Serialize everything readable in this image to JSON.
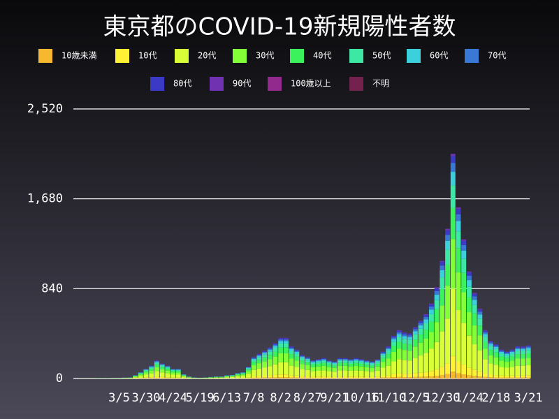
{
  "chart_data": {
    "type": "stacked_bar",
    "title": "東京都のCOVID-19新規陽性者数",
    "categories": [
      null,
      null,
      null,
      null,
      null,
      null,
      null,
      null,
      "3/5",
      null,
      null,
      null,
      null,
      "3/30",
      null,
      null,
      null,
      null,
      "4/24",
      null,
      null,
      null,
      null,
      "5/19",
      null,
      null,
      null,
      null,
      "6/13",
      null,
      null,
      null,
      null,
      "7/8",
      null,
      null,
      null,
      null,
      "8/2",
      null,
      null,
      null,
      null,
      "8/27",
      null,
      null,
      null,
      null,
      "9/21",
      null,
      null,
      null,
      null,
      "10/16",
      null,
      null,
      null,
      null,
      "11/10",
      null,
      null,
      null,
      null,
      "12/5",
      null,
      null,
      null,
      null,
      "12/30",
      null,
      null,
      null,
      null,
      "1/24",
      null,
      null,
      null,
      null,
      "2/18",
      null,
      null,
      null,
      null,
      null,
      "3/21"
    ],
    "ylim": [
      0,
      2520
    ],
    "yticks": [
      0,
      840,
      {
        "value": 1680,
        "label": "1,680"
      },
      {
        "value": 2520,
        "label": "2,520"
      }
    ],
    "grid": true,
    "series": [
      {
        "name": "10歳未満",
        "color": "#f5b82e",
        "values": [
          0,
          0,
          0,
          0,
          0,
          0,
          0,
          0,
          0,
          0,
          0,
          1,
          2,
          3,
          4,
          5,
          4,
          4,
          3,
          3,
          1,
          1,
          0,
          0,
          0,
          0,
          1,
          1,
          1,
          1,
          2,
          2,
          3,
          6,
          7,
          8,
          9,
          10,
          11,
          11,
          9,
          8,
          7,
          6,
          5,
          5,
          6,
          5,
          5,
          6,
          6,
          5,
          6,
          5,
          5,
          5,
          5,
          8,
          9,
          12,
          14,
          13,
          13,
          14,
          16,
          18,
          21,
          26,
          33,
          42,
          63,
          48,
          39,
          30,
          24,
          20,
          14,
          11,
          10,
          8,
          8,
          8,
          9,
          9,
          9
        ]
      },
      {
        "name": "10代",
        "color": "#fff234",
        "values": [
          0,
          0,
          0,
          0,
          0,
          0,
          0,
          0,
          0,
          1,
          1,
          2,
          4,
          6,
          8,
          12,
          10,
          8,
          6,
          6,
          3,
          1,
          1,
          1,
          1,
          1,
          1,
          1,
          2,
          2,
          4,
          4,
          8,
          14,
          16,
          18,
          20,
          23,
          27,
          27,
          21,
          19,
          15,
          14,
          12,
          13,
          13,
          12,
          11,
          13,
          13,
          13,
          13,
          13,
          12,
          11,
          13,
          18,
          21,
          28,
          32,
          30,
          29,
          34,
          38,
          42,
          49,
          60,
          77,
          98,
          147,
          112,
          91,
          70,
          56,
          46,
          32,
          25,
          22,
          19,
          18,
          19,
          21,
          21,
          22
        ]
      },
      {
        "name": "20代",
        "color": "#d9ff36",
        "values": [
          0,
          0,
          0,
          0,
          1,
          1,
          1,
          2,
          2,
          2,
          3,
          9,
          18,
          27,
          36,
          51,
          42,
          36,
          27,
          27,
          12,
          6,
          3,
          2,
          3,
          5,
          6,
          6,
          9,
          11,
          15,
          18,
          33,
          60,
          69,
          78,
          87,
          99,
          114,
          114,
          90,
          81,
          66,
          60,
          51,
          54,
          57,
          51,
          48,
          57,
          57,
          54,
          57,
          54,
          51,
          48,
          54,
          75,
          90,
          120,
          135,
          129,
          126,
          144,
          162,
          180,
          210,
          255,
          330,
          420,
          630,
          480,
          390,
          300,
          240,
          195,
          135,
          105,
          96,
          81,
          75,
          81,
          90,
          90,
          93
        ]
      },
      {
        "name": "30代",
        "color": "#82ff36",
        "values": [
          0,
          1,
          1,
          1,
          1,
          1,
          1,
          1,
          1,
          2,
          2,
          7,
          13,
          20,
          26,
          37,
          31,
          26,
          20,
          20,
          9,
          4,
          2,
          2,
          2,
          3,
          4,
          4,
          7,
          8,
          11,
          13,
          24,
          44,
          51,
          57,
          64,
          73,
          84,
          84,
          66,
          59,
          48,
          44,
          37,
          40,
          42,
          37,
          35,
          42,
          42,
          40,
          42,
          40,
          37,
          35,
          40,
          55,
          66,
          88,
          99,
          95,
          92,
          106,
          119,
          132,
          154,
          187,
          242,
          308,
          462,
          352,
          286,
          220,
          176,
          143,
          99,
          77,
          70,
          59,
          55,
          59,
          66,
          66,
          68
        ]
      },
      {
        "name": "40代",
        "color": "#3cf25c",
        "values": [
          0,
          0,
          0,
          0,
          0,
          0,
          0,
          1,
          1,
          1,
          1,
          4,
          8,
          13,
          17,
          24,
          20,
          17,
          13,
          13,
          6,
          3,
          1,
          1,
          1,
          2,
          3,
          3,
          4,
          5,
          7,
          8,
          15,
          28,
          32,
          36,
          41,
          46,
          53,
          53,
          42,
          38,
          31,
          28,
          24,
          25,
          27,
          24,
          22,
          27,
          27,
          25,
          27,
          25,
          24,
          22,
          25,
          35,
          42,
          56,
          63,
          60,
          59,
          67,
          76,
          84,
          98,
          119,
          154,
          196,
          294,
          224,
          182,
          140,
          112,
          91,
          63,
          49,
          45,
          38,
          35,
          38,
          42,
          42,
          43
        ]
      },
      {
        "name": "50代",
        "color": "#3ce8a4",
        "values": [
          0,
          0,
          0,
          0,
          1,
          1,
          1,
          1,
          1,
          1,
          1,
          3,
          6,
          9,
          12,
          17,
          14,
          12,
          9,
          9,
          4,
          2,
          1,
          1,
          1,
          1,
          2,
          2,
          3,
          3,
          5,
          6,
          11,
          20,
          23,
          26,
          29,
          33,
          38,
          38,
          30,
          27,
          22,
          20,
          17,
          18,
          19,
          17,
          16,
          19,
          19,
          18,
          19,
          18,
          17,
          16,
          18,
          25,
          30,
          40,
          45,
          43,
          42,
          48,
          54,
          60,
          70,
          85,
          110,
          140,
          210,
          160,
          130,
          100,
          80,
          65,
          45,
          35,
          32,
          27,
          25,
          27,
          30,
          30,
          31
        ]
      },
      {
        "name": "60代",
        "color": "#3ccfdc",
        "values": [
          0,
          0,
          0,
          0,
          0,
          0,
          0,
          0,
          1,
          1,
          1,
          2,
          4,
          5,
          7,
          10,
          8,
          7,
          5,
          5,
          2,
          1,
          1,
          0,
          1,
          1,
          1,
          1,
          2,
          2,
          3,
          4,
          7,
          12,
          14,
          16,
          17,
          20,
          23,
          23,
          18,
          16,
          13,
          12,
          10,
          11,
          11,
          10,
          10,
          11,
          11,
          11,
          11,
          11,
          10,
          10,
          11,
          15,
          18,
          24,
          27,
          26,
          25,
          29,
          32,
          36,
          42,
          51,
          66,
          84,
          126,
          96,
          78,
          60,
          48,
          39,
          27,
          21,
          19,
          16,
          15,
          16,
          18,
          18,
          19
        ]
      },
      {
        "name": "70代",
        "color": "#3a78d6",
        "values": [
          0,
          0,
          0,
          0,
          0,
          0,
          0,
          0,
          0,
          0,
          0,
          1,
          2,
          4,
          5,
          7,
          6,
          5,
          4,
          4,
          2,
          1,
          0,
          0,
          0,
          1,
          1,
          1,
          1,
          1,
          2,
          2,
          4,
          8,
          9,
          10,
          12,
          13,
          15,
          15,
          12,
          11,
          9,
          8,
          7,
          7,
          8,
          7,
          6,
          8,
          8,
          7,
          8,
          7,
          7,
          6,
          7,
          10,
          12,
          16,
          18,
          17,
          17,
          19,
          22,
          24,
          28,
          34,
          44,
          56,
          84,
          64,
          52,
          40,
          32,
          26,
          18,
          14,
          13,
          11,
          10,
          11,
          12,
          12,
          12
        ]
      },
      {
        "name": "80代",
        "color": "#3a3ac6",
        "values": [
          0,
          0,
          0,
          0,
          0,
          0,
          0,
          0,
          0,
          0,
          0,
          1,
          2,
          3,
          4,
          5,
          4,
          4,
          3,
          3,
          1,
          1,
          0,
          0,
          0,
          0,
          1,
          1,
          1,
          1,
          2,
          2,
          3,
          6,
          7,
          8,
          9,
          10,
          11,
          11,
          9,
          8,
          7,
          6,
          5,
          5,
          6,
          5,
          5,
          6,
          6,
          5,
          6,
          5,
          5,
          5,
          5,
          8,
          9,
          12,
          14,
          13,
          13,
          14,
          16,
          18,
          21,
          26,
          33,
          42,
          63,
          48,
          39,
          30,
          24,
          20,
          14,
          11,
          10,
          8,
          8,
          8,
          9,
          9,
          9
        ]
      },
      {
        "name": "90代",
        "color": "#7032b0",
        "values": [
          0,
          0,
          0,
          0,
          0,
          0,
          0,
          0,
          0,
          0,
          0,
          0,
          0,
          1,
          1,
          2,
          1,
          1,
          1,
          1,
          0,
          0,
          0,
          0,
          0,
          0,
          0,
          0,
          0,
          0,
          0,
          0,
          1,
          2,
          2,
          3,
          3,
          3,
          4,
          4,
          3,
          3,
          2,
          2,
          2,
          2,
          2,
          2,
          2,
          2,
          2,
          2,
          2,
          2,
          2,
          2,
          2,
          3,
          3,
          4,
          5,
          4,
          4,
          5,
          5,
          6,
          7,
          9,
          11,
          14,
          21,
          16,
          13,
          10,
          8,
          7,
          5,
          4,
          3,
          3,
          3,
          3,
          3,
          3,
          3
        ]
      },
      {
        "name": "100歳以上",
        "color": "#922a8e",
        "values": [
          0,
          0,
          0,
          0,
          0,
          0,
          0,
          0,
          0,
          0,
          0,
          0,
          0,
          0,
          0,
          0,
          0,
          0,
          0,
          0,
          0,
          0,
          0,
          0,
          0,
          0,
          0,
          0,
          0,
          0,
          0,
          0,
          0,
          0,
          0,
          0,
          0,
          0,
          0,
          0,
          0,
          0,
          0,
          0,
          0,
          0,
          0,
          0,
          0,
          0,
          0,
          0,
          0,
          0,
          0,
          0,
          0,
          0,
          0,
          0,
          0,
          0,
          0,
          0,
          0,
          0,
          0,
          0,
          0,
          0,
          0,
          0,
          0,
          0,
          0,
          0,
          0,
          0,
          0,
          0,
          0,
          0,
          0,
          0,
          0
        ]
      },
      {
        "name": "不明",
        "color": "#73224e",
        "values": [
          0,
          0,
          0,
          0,
          0,
          0,
          0,
          0,
          0,
          0,
          0,
          0,
          0,
          0,
          0,
          0,
          0,
          0,
          0,
          0,
          0,
          0,
          0,
          0,
          0,
          0,
          0,
          0,
          0,
          0,
          0,
          0,
          0,
          0,
          0,
          0,
          0,
          0,
          0,
          0,
          0,
          0,
          0,
          0,
          0,
          0,
          0,
          0,
          0,
          0,
          0,
          0,
          0,
          0,
          0,
          0,
          0,
          0,
          0,
          0,
          0,
          0,
          0,
          0,
          0,
          0,
          0,
          0,
          0,
          0,
          0,
          0,
          0,
          0,
          0,
          0,
          0,
          0,
          0,
          0,
          0,
          0,
          0,
          0,
          0
        ]
      }
    ]
  }
}
